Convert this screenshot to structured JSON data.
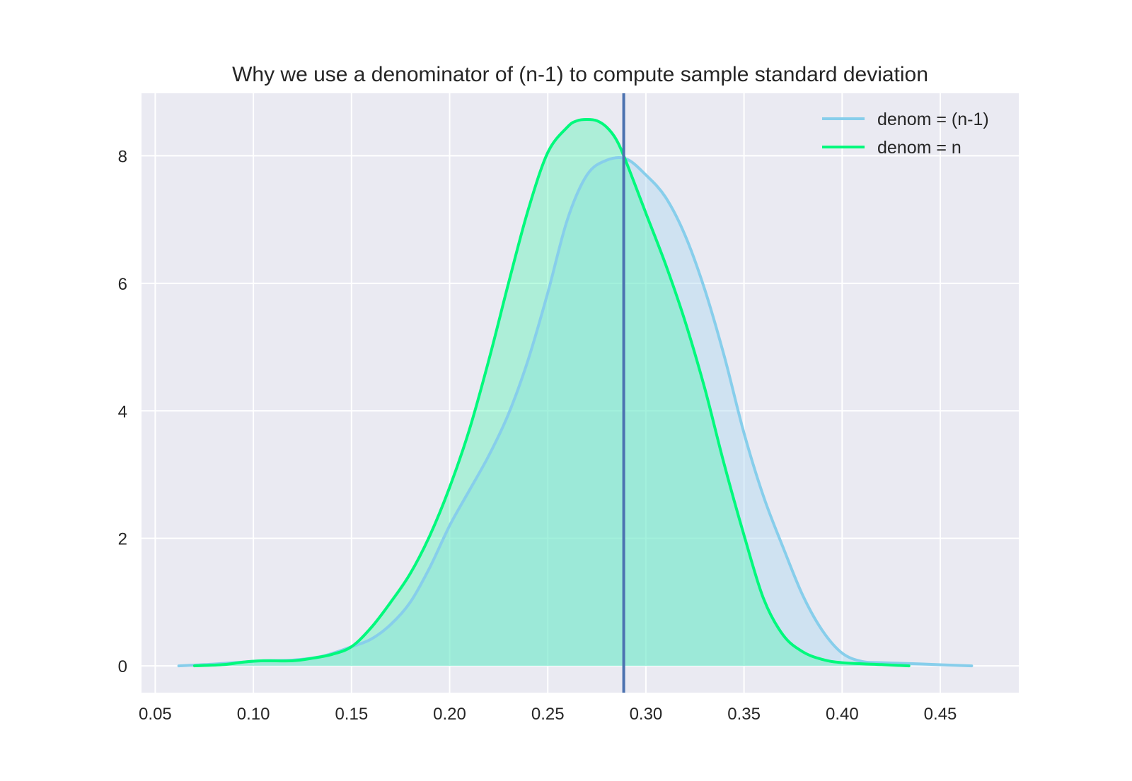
{
  "chart_data": {
    "type": "area",
    "title": "Why we use a denominator of (n-1) to compute sample standard deviation",
    "xlabel": "",
    "ylabel": "",
    "xlim": [
      0.043,
      0.49
    ],
    "ylim": [
      -0.42,
      8.98
    ],
    "x_ticks": [
      0.05,
      0.1,
      0.15,
      0.2,
      0.25,
      0.3,
      0.35,
      0.4,
      0.45
    ],
    "x_tick_labels": [
      "0.05",
      "0.10",
      "0.15",
      "0.20",
      "0.25",
      "0.30",
      "0.35",
      "0.40",
      "0.45"
    ],
    "y_ticks": [
      0,
      2,
      4,
      6,
      8
    ],
    "y_tick_labels": [
      "0",
      "2",
      "4",
      "6",
      "8"
    ],
    "grid": true,
    "legend_position": "top-right",
    "vline": {
      "x": 0.2887,
      "color": "#4c72b0"
    },
    "series": [
      {
        "name": "denom = (n-1)",
        "color": "#87ceeb",
        "x": [
          0.062,
          0.075,
          0.09,
          0.105,
          0.12,
          0.135,
          0.15,
          0.16,
          0.17,
          0.18,
          0.19,
          0.2,
          0.21,
          0.22,
          0.23,
          0.24,
          0.25,
          0.26,
          0.27,
          0.28,
          0.29,
          0.3,
          0.31,
          0.32,
          0.33,
          0.34,
          0.35,
          0.36,
          0.37,
          0.38,
          0.39,
          0.4,
          0.41,
          0.42,
          0.44,
          0.466
        ],
        "y": [
          0.0,
          0.02,
          0.05,
          0.08,
          0.09,
          0.15,
          0.3,
          0.42,
          0.65,
          1.0,
          1.55,
          2.2,
          2.75,
          3.3,
          3.95,
          4.8,
          5.85,
          7.0,
          7.7,
          7.93,
          7.95,
          7.7,
          7.35,
          6.75,
          5.9,
          4.85,
          3.65,
          2.65,
          1.85,
          1.1,
          0.55,
          0.2,
          0.07,
          0.05,
          0.03,
          0.0
        ]
      },
      {
        "name": "denom = n",
        "color": "#00f97c",
        "x": [
          0.07,
          0.085,
          0.095,
          0.105,
          0.12,
          0.13,
          0.14,
          0.15,
          0.16,
          0.17,
          0.18,
          0.19,
          0.2,
          0.21,
          0.22,
          0.23,
          0.24,
          0.25,
          0.26,
          0.265,
          0.27,
          0.275,
          0.28,
          0.285,
          0.29,
          0.3,
          0.31,
          0.32,
          0.33,
          0.34,
          0.35,
          0.36,
          0.37,
          0.38,
          0.39,
          0.4,
          0.42,
          0.434
        ],
        "y": [
          0.0,
          0.02,
          0.06,
          0.08,
          0.08,
          0.12,
          0.18,
          0.3,
          0.6,
          1.0,
          1.45,
          2.05,
          2.8,
          3.7,
          4.8,
          6.0,
          7.15,
          8.05,
          8.45,
          8.55,
          8.57,
          8.55,
          8.45,
          8.25,
          7.9,
          7.1,
          6.3,
          5.4,
          4.35,
          3.15,
          2.05,
          1.05,
          0.48,
          0.22,
          0.1,
          0.05,
          0.02,
          0.0
        ]
      }
    ]
  }
}
